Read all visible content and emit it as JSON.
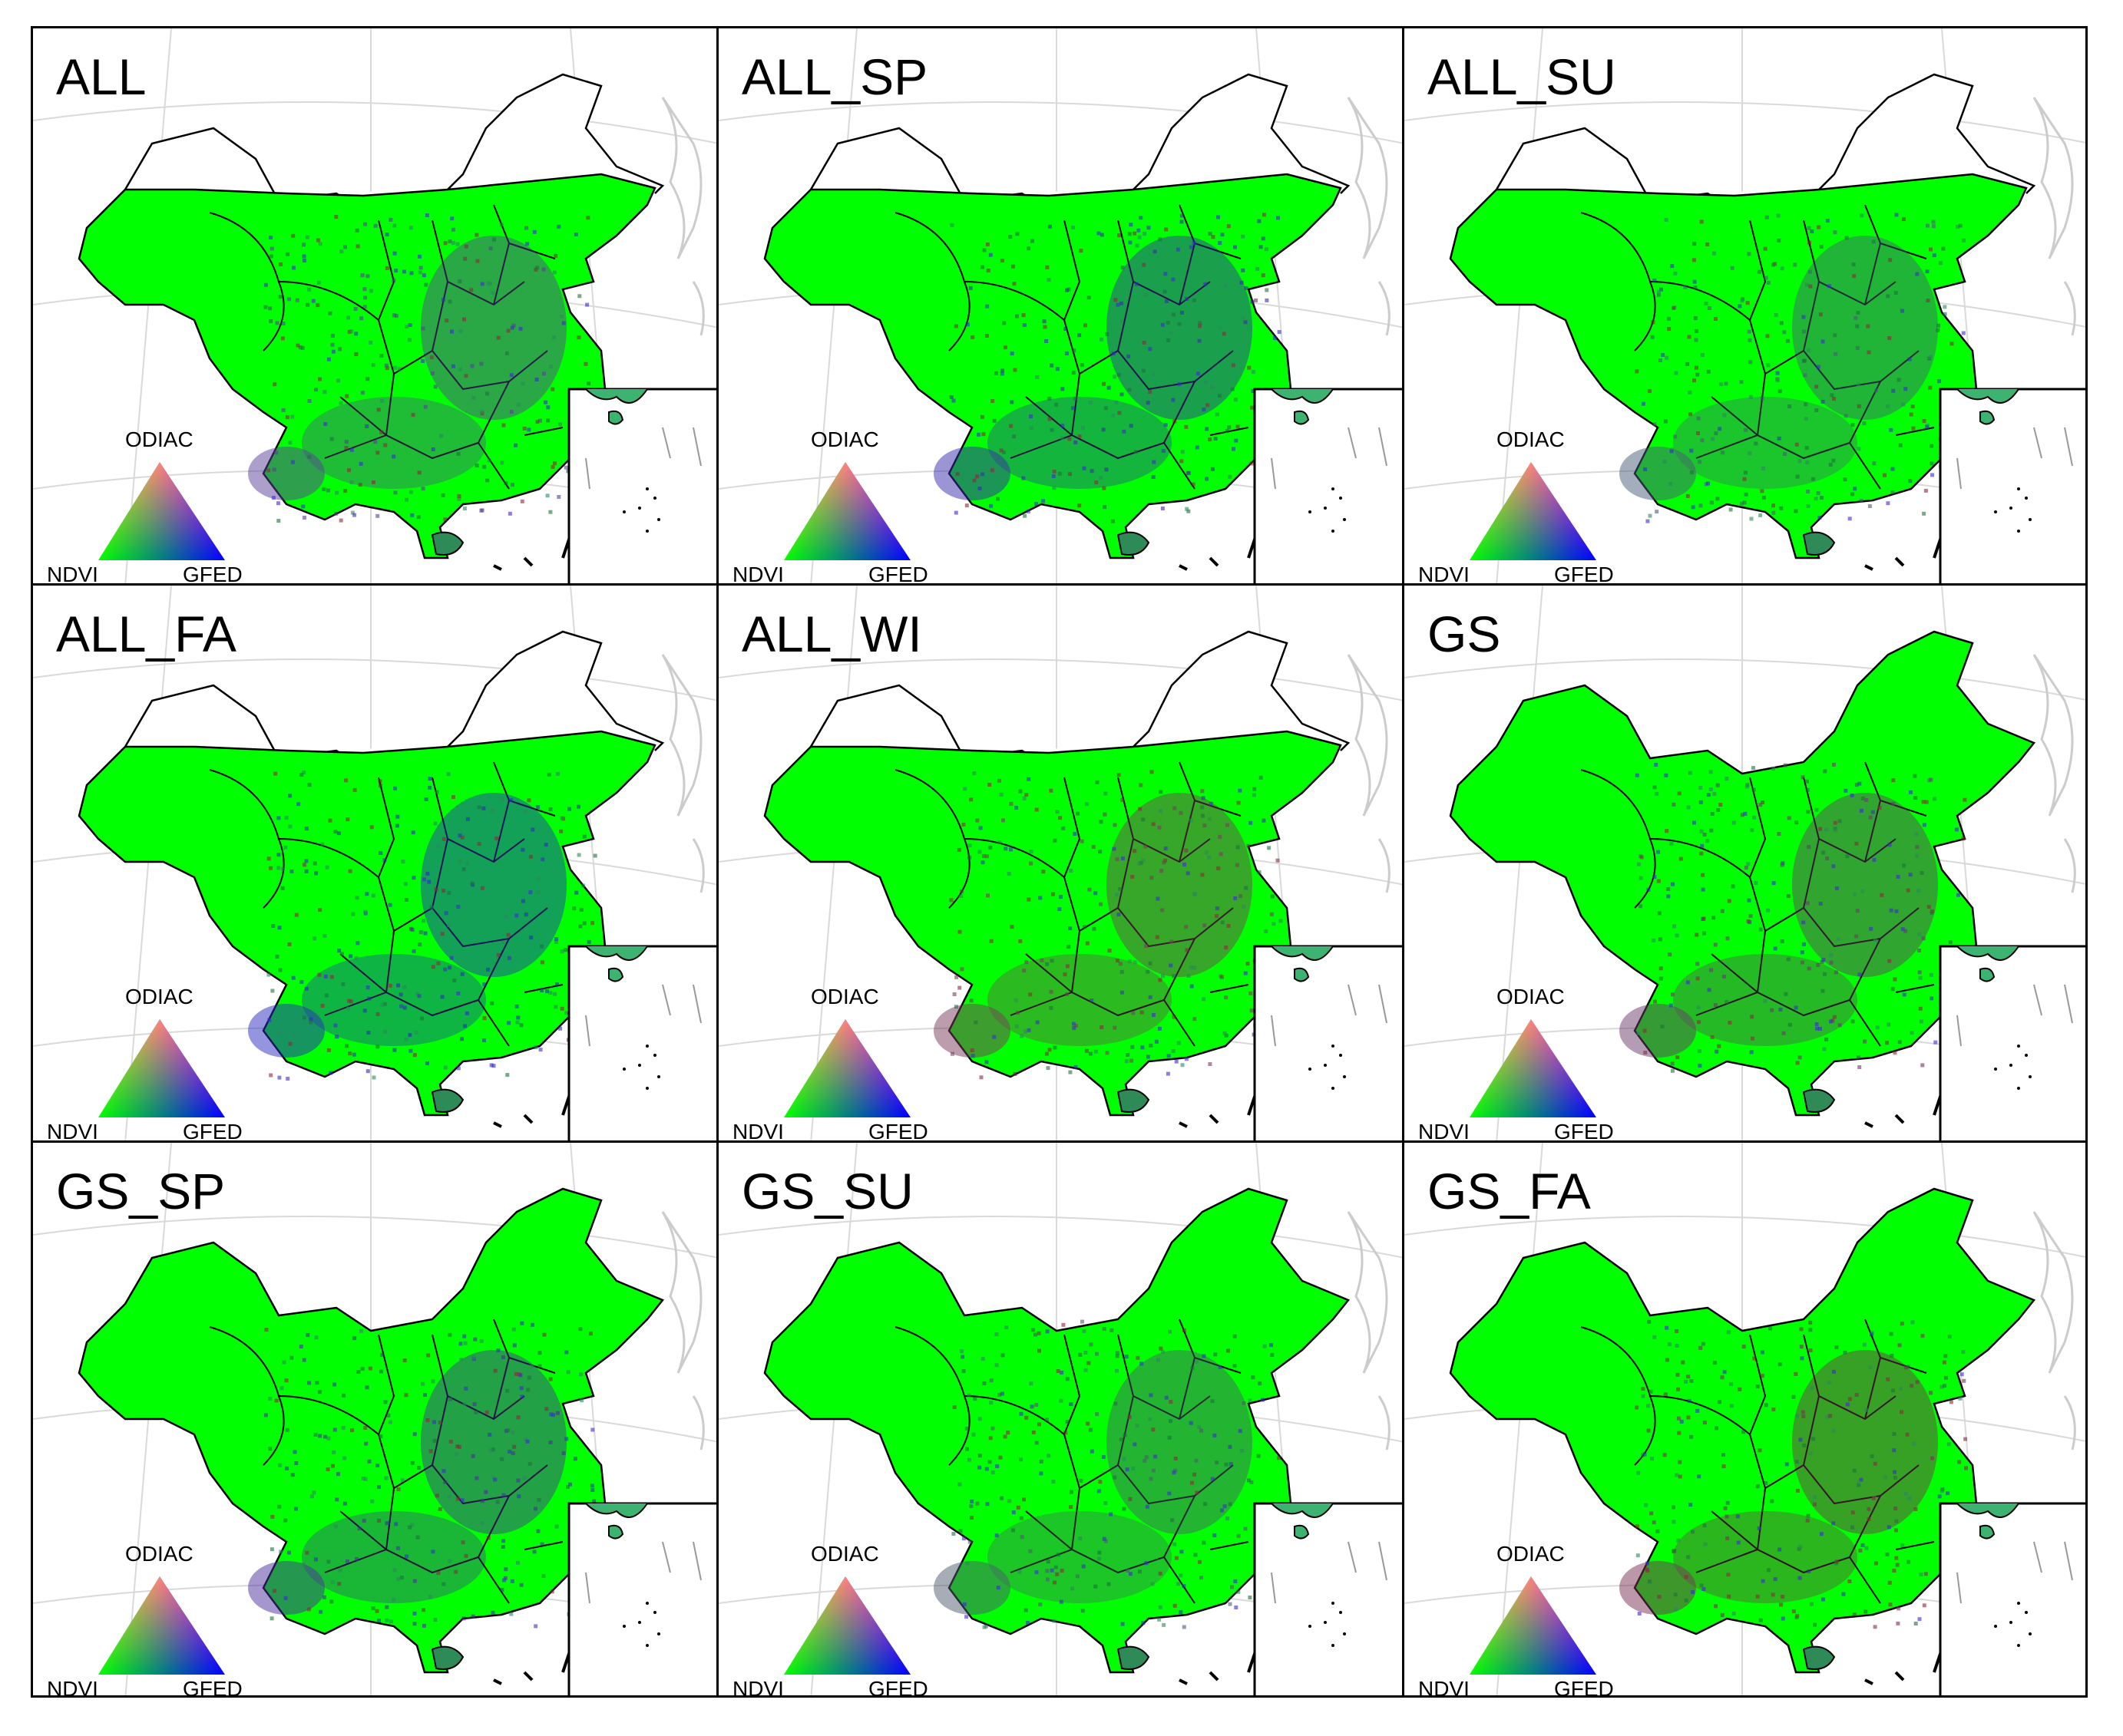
{
  "panels": [
    {
      "label": "ALL",
      "grid": "bounded",
      "tint": "#5a3f9a",
      "col": 0,
      "row": 0
    },
    {
      "label": "ALL_SP",
      "grid": "bounded",
      "tint": "#3a2cab",
      "col": 1,
      "row": 0
    },
    {
      "label": "ALL_SU",
      "grid": "bounded",
      "tint": "#4a5b7a",
      "col": 2,
      "row": 0
    },
    {
      "label": "ALL_FA",
      "grid": "bounded",
      "tint": "#2b2cc0",
      "col": 0,
      "row": 1
    },
    {
      "label": "ALL_WI",
      "grid": "bounded",
      "tint": "#7a3c5c",
      "col": 1,
      "row": 1
    },
    {
      "label": "GS",
      "grid": "full",
      "tint": "#6a3a6a",
      "col": 2,
      "row": 1
    },
    {
      "label": "GS_SP",
      "grid": "full",
      "tint": "#4b2f9c",
      "col": 0,
      "row": 2
    },
    {
      "label": "GS_SU",
      "grid": "full",
      "tint": "#4d5b6e",
      "col": 1,
      "row": 2
    },
    {
      "label": "GS_FA",
      "grid": "full",
      "tint": "#7a2f55",
      "col": 2,
      "row": 2
    }
  ],
  "ternary": {
    "top": "ODIAC",
    "left": "NDVI",
    "right": "GFED"
  },
  "colors": {
    "ndvi": "#00ff00",
    "odiac": "#ff0000",
    "gfed": "#0000ff",
    "border": "#000000",
    "background_lines": "#d9d9d9"
  }
}
